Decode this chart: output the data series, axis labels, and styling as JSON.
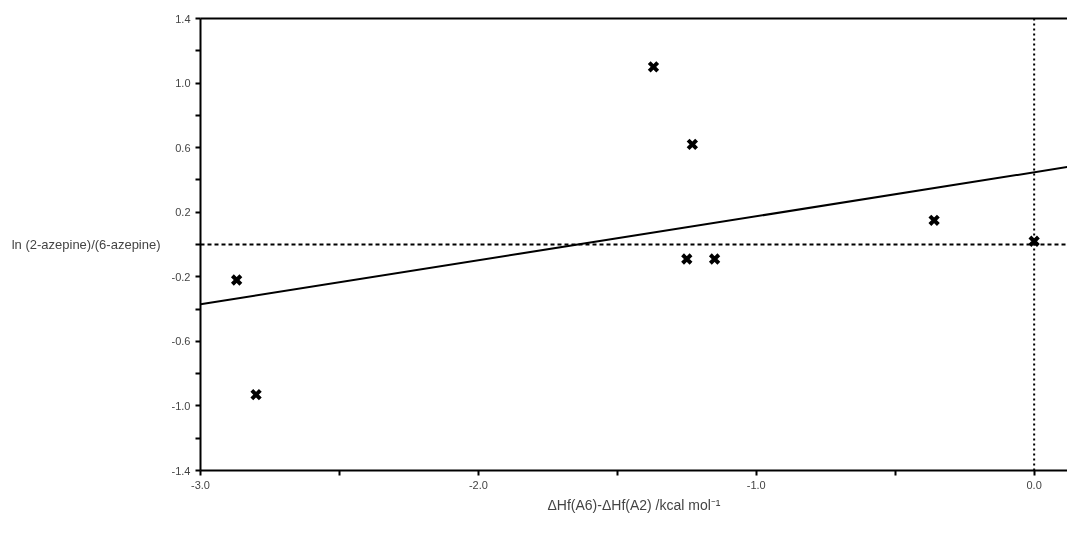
{
  "chart_data": {
    "type": "scatter",
    "xlabel": "ΔHf(A6)-ΔHf(A2) /kcal mol⁻¹",
    "ylabel": "ln (2-azepine)/(6-azepine)",
    "x": [
      -2.87,
      -2.8,
      -1.37,
      -1.23,
      -1.25,
      -1.15,
      -0.36,
      0.0
    ],
    "series": [
      {
        "color": "#000000",
        "marker": "cross",
        "values": [
          -0.22,
          -0.93,
          1.1,
          0.62,
          -0.09,
          -0.09,
          0.15,
          0.02
        ]
      },
      {
        "type": "line",
        "color": "#000000",
        "line_style": "solid",
        "x": [
          -3.0,
          0.12
        ],
        "values": [
          -0.37,
          0.48
        ]
      }
    ],
    "xlim": [
      -3.0,
      0.12
    ],
    "ylim": [
      -1.4,
      1.4
    ],
    "xticks": [
      {
        "value": -3,
        "label": "-3.0"
      },
      {
        "value": -2.5,
        "label": null
      },
      {
        "value": -2,
        "label": "-2.0"
      },
      {
        "value": -1.5,
        "label": null
      },
      {
        "value": -1,
        "label": "-1.0"
      },
      {
        "value": -0.5,
        "label": null
      },
      {
        "value": 0,
        "label": "0.0"
      }
    ],
    "yticks": [
      -1.4,
      {
        "value": -1.2,
        "label": null
      },
      {
        "value": -1,
        "label": "-1.0"
      },
      {
        "value": -0.8,
        "label": null
      },
      -0.6,
      {
        "value": -0.4,
        "label": null
      },
      -0.2,
      {
        "value": 0.0,
        "label": null
      },
      0.2,
      {
        "value": 0.4,
        "label": null
      },
      0.6,
      {
        "value": 0.8,
        "label": null
      },
      {
        "value": 1,
        "label": "1.0"
      },
      {
        "value": 1.2,
        "label": null
      },
      1.4
    ],
    "ref_lines": [
      {
        "axis": "y",
        "value": 0.0,
        "line_style": "dashed"
      },
      {
        "axis": "x",
        "value": 0.0,
        "line_style": "dotted"
      }
    ],
    "grid": false
  }
}
